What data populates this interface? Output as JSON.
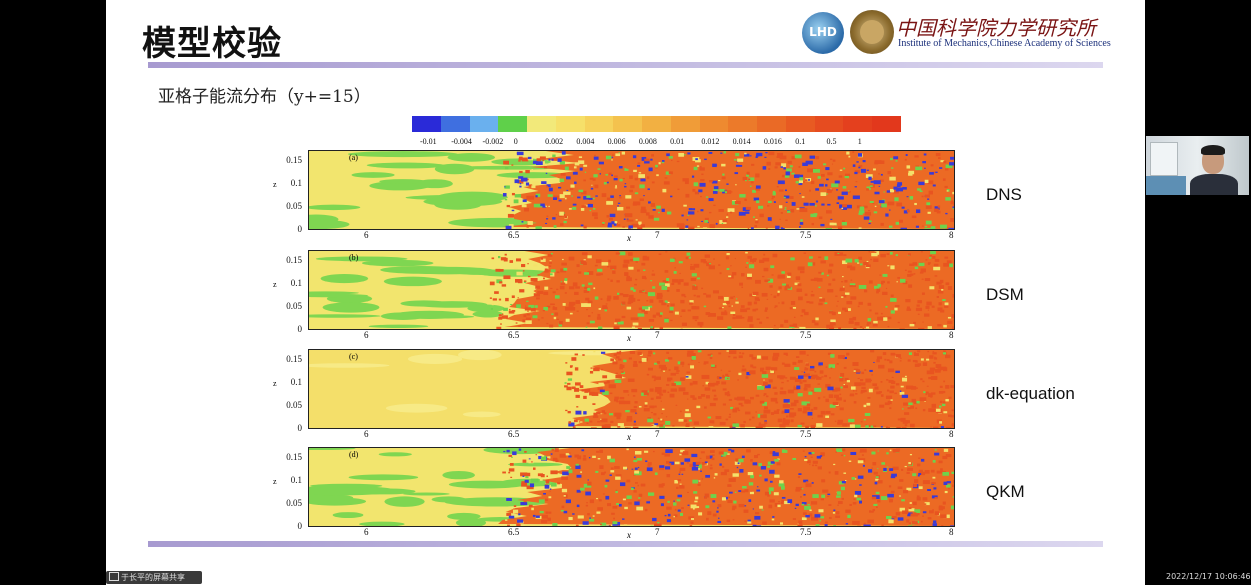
{
  "slide": {
    "title": "模型校验",
    "institute_cn": "中国科学院力学研究所",
    "institute_en": "Institute of Mechanics,Chinese Academy of Sciences",
    "logo_text": "LHD",
    "subtitle": "亚格子能流分布（y+=15）"
  },
  "colorbar": {
    "colors": [
      "#2a2ad8",
      "#3f6fe0",
      "#6ab0ee",
      "#5fd04a",
      "#f2e97a",
      "#f6e06a",
      "#f6d25c",
      "#f4c24e",
      "#f2b042",
      "#f09c38",
      "#ee8a30",
      "#ec7a2a",
      "#ea6a26",
      "#e85a22",
      "#e64c20",
      "#e4401e",
      "#e2381c"
    ],
    "labels": [
      "-0.01",
      "-0.004",
      "-0.002",
      "0",
      "0.002",
      "0.004",
      "0.006",
      "0.008",
      "0.01",
      "0.012",
      "0.014",
      "0.016",
      "0.1",
      "0.5",
      "1"
    ]
  },
  "panels": [
    {
      "letter": "(a)",
      "model": "DNS",
      "front": 0.33,
      "mix": 0.55,
      "blue": 0.35
    },
    {
      "letter": "(b)",
      "model": "DSM",
      "front": 0.31,
      "mix": 0.45,
      "blue": 0.0
    },
    {
      "letter": "(c)",
      "model": "dk-equation",
      "front": 0.42,
      "mix": 0.25,
      "blue": 0.06
    },
    {
      "letter": "(d)",
      "model": "QKM",
      "front": 0.33,
      "mix": 0.5,
      "blue": 0.25
    }
  ],
  "axes": {
    "x_ticks": [
      "6",
      "6.5",
      "7",
      "7.5",
      "8"
    ],
    "y_ticks": [
      "0.15",
      "0.1",
      "0.05",
      "0"
    ],
    "xlabel": "x",
    "zlabel": "z"
  },
  "overlay": {
    "share_label": "于长平的屏幕共享",
    "timestamp": "2022/12/17 10:06:46"
  }
}
